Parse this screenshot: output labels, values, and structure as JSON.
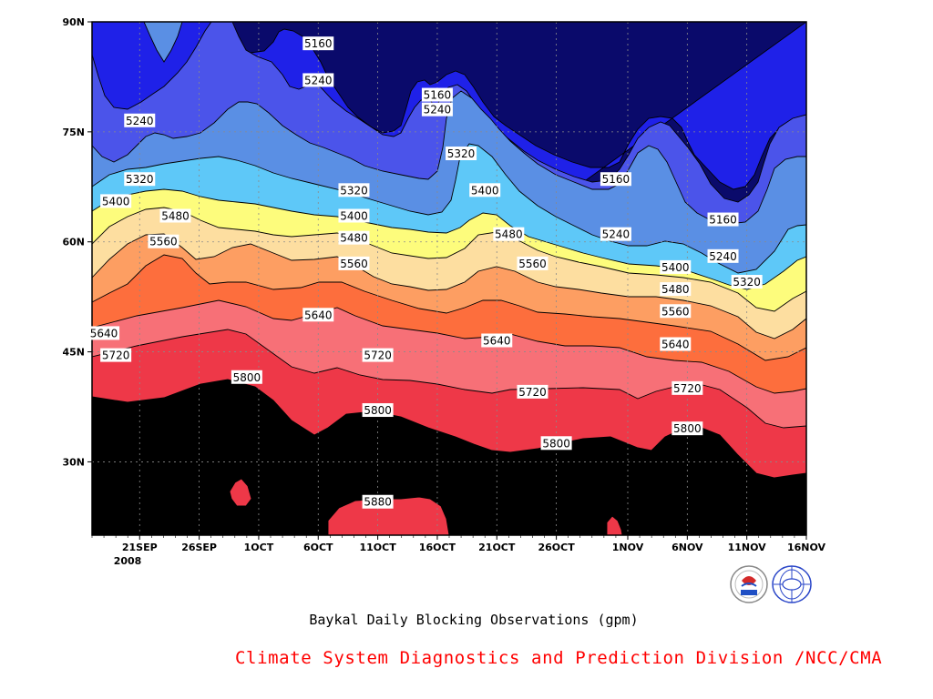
{
  "chart_data": {
    "type": "contour",
    "title": "Baykal Daily Blocking Observations (gpm)",
    "credit": "Climate System Diagnostics and Prediction Division /NCC/CMA",
    "year_label": "2008",
    "x_ticks": [
      "21SEP",
      "26SEP",
      "1OCT",
      "6OCT",
      "11OCT",
      "16OCT",
      "21OCT",
      "26OCT",
      "1NOV",
      "6NOV",
      "11NOV",
      "16NOV"
    ],
    "y_ticks": [
      "90N",
      "75N",
      "60N",
      "45N",
      "30N"
    ],
    "ylim": [
      20,
      90
    ],
    "x_range": [
      "2008-09-17",
      "2008-11-16"
    ],
    "contour_levels": [
      5160,
      5240,
      5320,
      5400,
      5480,
      5560,
      5640,
      5720,
      5800,
      5880
    ],
    "fill_colors": [
      "#0a0a6b",
      "#1f21e8",
      "#4b54ea",
      "#5a8fe4",
      "#5ec8f8",
      "#fdfc7c",
      "#fddea0",
      "#fd9e62",
      "#fd6e3d",
      "#f77077",
      "#ee3848"
    ],
    "contour_labels": [
      {
        "value": "5160",
        "date": "2008-10-06",
        "lat": 87
      },
      {
        "value": "5160",
        "date": "2008-10-16",
        "lat": 80
      },
      {
        "value": "5160",
        "date": "2008-10-31",
        "lat": 68.5
      },
      {
        "value": "5160",
        "date": "2008-11-09",
        "lat": 63
      },
      {
        "value": "5240",
        "date": "2008-09-21",
        "lat": 76.5
      },
      {
        "value": "5240",
        "date": "2008-10-06",
        "lat": 82
      },
      {
        "value": "5240",
        "date": "2008-10-16",
        "lat": 78
      },
      {
        "value": "5240",
        "date": "2008-10-31",
        "lat": 61
      },
      {
        "value": "5240",
        "date": "2008-11-09",
        "lat": 58
      },
      {
        "value": "5320",
        "date": "2008-09-21",
        "lat": 68.5
      },
      {
        "value": "5320",
        "date": "2008-10-09",
        "lat": 67
      },
      {
        "value": "5320",
        "date": "2008-10-18",
        "lat": 72
      },
      {
        "value": "5320",
        "date": "2008-11-11",
        "lat": 54.5
      },
      {
        "value": "5400",
        "date": "2008-09-19",
        "lat": 65.5
      },
      {
        "value": "5400",
        "date": "2008-10-09",
        "lat": 63.5
      },
      {
        "value": "5400",
        "date": "2008-10-20",
        "lat": 67
      },
      {
        "value": "5400",
        "date": "2008-11-05",
        "lat": 56.5
      },
      {
        "value": "5480",
        "date": "2008-09-24",
        "lat": 63.5
      },
      {
        "value": "5480",
        "date": "2008-10-09",
        "lat": 60.5
      },
      {
        "value": "5480",
        "date": "2008-10-22",
        "lat": 61
      },
      {
        "value": "5480",
        "date": "2008-11-05",
        "lat": 53.5
      },
      {
        "value": "5560",
        "date": "2008-09-23",
        "lat": 60
      },
      {
        "value": "5560",
        "date": "2008-10-09",
        "lat": 57
      },
      {
        "value": "5560",
        "date": "2008-10-24",
        "lat": 57
      },
      {
        "value": "5560",
        "date": "2008-11-05",
        "lat": 50.5
      },
      {
        "value": "5640",
        "date": "2008-09-18",
        "lat": 47.5
      },
      {
        "value": "5640",
        "date": "2008-10-06",
        "lat": 50
      },
      {
        "value": "5640",
        "date": "2008-10-21",
        "lat": 46.5
      },
      {
        "value": "5640",
        "date": "2008-11-05",
        "lat": 46
      },
      {
        "value": "5720",
        "date": "2008-09-19",
        "lat": 44.5
      },
      {
        "value": "5720",
        "date": "2008-10-11",
        "lat": 44.5
      },
      {
        "value": "5720",
        "date": "2008-10-24",
        "lat": 39.5
      },
      {
        "value": "5720",
        "date": "2008-11-06",
        "lat": 40
      },
      {
        "value": "5800",
        "date": "2008-09-30",
        "lat": 41.5
      },
      {
        "value": "5800",
        "date": "2008-10-11",
        "lat": 37
      },
      {
        "value": "5800",
        "date": "2008-10-26",
        "lat": 32.5
      },
      {
        "value": "5800",
        "date": "2008-11-06",
        "lat": 34.5
      },
      {
        "value": "5880",
        "date": "2008-10-11",
        "lat": 24.5
      }
    ]
  }
}
